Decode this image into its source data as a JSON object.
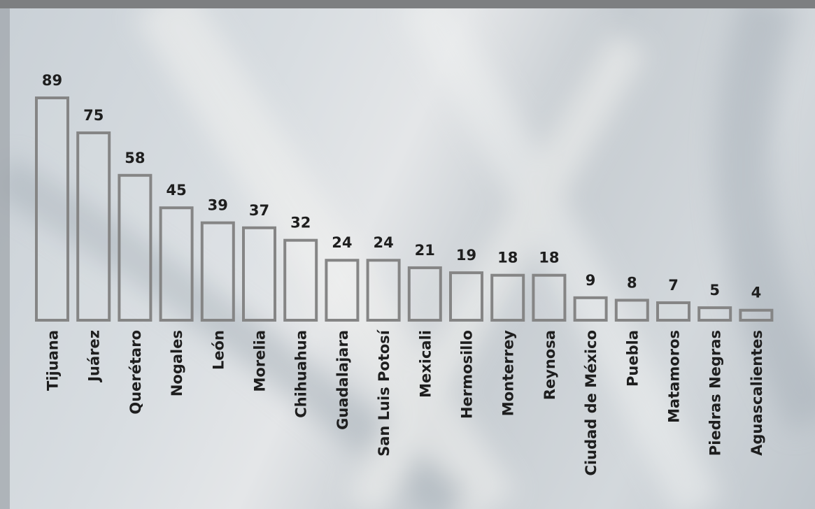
{
  "chart_data": {
    "type": "bar",
    "categories": [
      "Tijuana",
      "Juárez",
      "Querétaro",
      "Nogales",
      "León",
      "Morelia",
      "Chihuahua",
      "Guadalajara",
      "San Luis Potosí",
      "Mexicali",
      "Hermosillo",
      "Monterrey",
      "Reynosa",
      "Ciudad de México",
      "Puebla",
      "Matamoros",
      "Piedras Negras",
      "Aguascalientes"
    ],
    "values": [
      89,
      75,
      58,
      45,
      39,
      37,
      32,
      24,
      24,
      21,
      19,
      18,
      18,
      9,
      8,
      7,
      5,
      4
    ],
    "color": "#858585"
  }
}
